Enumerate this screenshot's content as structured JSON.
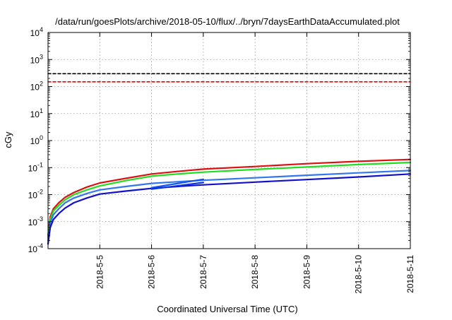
{
  "chart_data": {
    "type": "line",
    "title": "/data/run/goesPlots/archive/2018-05-10/flux/../bryn/7daysEarthDataAccumulated.plot",
    "xlabel": "Coordinated Universal Time (UTC)",
    "ylabel": "cGy",
    "y_scale": "log",
    "ylim": [
      0.0001,
      10000
    ],
    "xlim": [
      "2018-05-04 00:00",
      "2018-05-11 00:00"
    ],
    "x_ticks": [
      "2018-5-5",
      "2018-5-6",
      "2018-5-7",
      "2018-5-8",
      "2018-5-9",
      "2018-5-10",
      "2018-5-11"
    ],
    "y_ticks": [
      {
        "value": 0.0001,
        "base": "10",
        "exp": "-4"
      },
      {
        "value": 0.001,
        "base": "10",
        "exp": "-3"
      },
      {
        "value": 0.01,
        "base": "10",
        "exp": "-2"
      },
      {
        "value": 0.1,
        "base": "10",
        "exp": "-1"
      },
      {
        "value": 1,
        "base": "10",
        "exp": "0"
      },
      {
        "value": 10,
        "base": "10",
        "exp": "1"
      },
      {
        "value": 100,
        "base": "10",
        "exp": "2"
      },
      {
        "value": 1000,
        "base": "10",
        "exp": "3"
      },
      {
        "value": 10000,
        "base": "10",
        "exp": "4"
      }
    ],
    "grid": true,
    "series": [
      {
        "color": "#000000",
        "dashed": true,
        "points": [
          [
            "2018-05-04 00:00",
            300
          ],
          [
            "2018-05-11 00:00",
            300
          ]
        ]
      },
      {
        "color": "#ee0000",
        "dashed": true,
        "points": [
          [
            "2018-05-04 00:00",
            150
          ],
          [
            "2018-05-11 00:00",
            150
          ]
        ]
      },
      {
        "color": "#dd1111",
        "dashed": false,
        "points": [
          [
            "2018-05-04 00:00",
            0.0003
          ],
          [
            "2018-05-04 01:00",
            0.0015
          ],
          [
            "2018-05-04 02:30",
            0.003
          ],
          [
            "2018-05-04 05:00",
            0.005
          ],
          [
            "2018-05-04 08:00",
            0.008
          ],
          [
            "2018-05-04 12:00",
            0.012
          ],
          [
            "2018-05-04 18:00",
            0.019
          ],
          [
            "2018-05-05 00:00",
            0.027
          ],
          [
            "2018-05-05 12:00",
            0.04
          ],
          [
            "2018-05-06 00:00",
            0.058
          ],
          [
            "2018-05-06 12:00",
            0.072
          ],
          [
            "2018-05-07 00:00",
            0.088
          ],
          [
            "2018-05-08 00:00",
            0.11
          ],
          [
            "2018-05-09 00:00",
            0.14
          ],
          [
            "2018-05-10 00:00",
            0.17
          ],
          [
            "2018-05-11 00:00",
            0.2
          ]
        ]
      },
      {
        "color": "#22dd22",
        "dashed": false,
        "points": [
          [
            "2018-05-04 00:00",
            0.00025
          ],
          [
            "2018-05-04 01:00",
            0.0012
          ],
          [
            "2018-05-04 02:30",
            0.0025
          ],
          [
            "2018-05-04 05:00",
            0.004
          ],
          [
            "2018-05-04 08:00",
            0.0065
          ],
          [
            "2018-05-04 12:00",
            0.01
          ],
          [
            "2018-05-04 18:00",
            0.015
          ],
          [
            "2018-05-05 00:00",
            0.021
          ],
          [
            "2018-05-05 12:00",
            0.033
          ],
          [
            "2018-05-06 00:00",
            0.048
          ],
          [
            "2018-05-06 12:00",
            0.058
          ],
          [
            "2018-05-07 00:00",
            0.068
          ],
          [
            "2018-05-08 00:00",
            0.085
          ],
          [
            "2018-05-09 00:00",
            0.105
          ],
          [
            "2018-05-10 00:00",
            0.13
          ],
          [
            "2018-05-11 00:00",
            0.155
          ]
        ]
      },
      {
        "color": "#3377ee",
        "dashed": false,
        "points": [
          [
            "2018-05-04 00:00",
            0.0002
          ],
          [
            "2018-05-04 01:00",
            0.0009
          ],
          [
            "2018-05-04 02:30",
            0.0018
          ],
          [
            "2018-05-04 05:00",
            0.003
          ],
          [
            "2018-05-04 08:00",
            0.005
          ],
          [
            "2018-05-04 12:00",
            0.0075
          ],
          [
            "2018-05-04 18:00",
            0.011
          ],
          [
            "2018-05-05 00:00",
            0.015
          ],
          [
            "2018-05-05 12:00",
            0.02
          ],
          [
            "2018-05-06 00:00",
            0.026
          ],
          [
            "2018-05-06 12:00",
            0.03
          ],
          [
            "2018-05-07 00:00",
            0.034
          ],
          [
            "2018-05-08 00:00",
            0.042
          ],
          [
            "2018-05-09 00:00",
            0.052
          ],
          [
            "2018-05-10 00:00",
            0.064
          ],
          [
            "2018-05-11 00:00",
            0.078
          ]
        ]
      },
      {
        "color": "#1111cc",
        "dashed": false,
        "points": [
          [
            "2018-05-04 00:00",
            0.00015
          ],
          [
            "2018-05-04 01:00",
            0.0006
          ],
          [
            "2018-05-04 02:30",
            0.0012
          ],
          [
            "2018-05-04 05:00",
            0.002
          ],
          [
            "2018-05-04 08:00",
            0.0032
          ],
          [
            "2018-05-04 12:00",
            0.005
          ],
          [
            "2018-05-04 18:00",
            0.0075
          ],
          [
            "2018-05-05 00:00",
            0.0105
          ],
          [
            "2018-05-05 12:00",
            0.0135
          ],
          [
            "2018-05-06 00:00",
            0.017
          ],
          [
            "2018-05-06 12:00",
            0.02
          ],
          [
            "2018-05-07 00:00",
            0.023
          ],
          [
            "2018-05-08 00:00",
            0.029
          ],
          [
            "2018-05-09 00:00",
            0.036
          ],
          [
            "2018-05-10 00:00",
            0.045
          ],
          [
            "2018-05-11 00:00",
            0.058
          ]
        ]
      },
      {
        "color": "#1155ee",
        "dashed": false,
        "points": [
          [
            "2018-05-06 00:00",
            0.018
          ],
          [
            "2018-05-07 00:00",
            0.037
          ]
        ]
      },
      {
        "color": "#1133dd",
        "dashed": false,
        "points": [
          [
            "2018-05-06 00:00",
            0.016
          ],
          [
            "2018-05-07 00:00",
            0.028
          ]
        ]
      }
    ]
  }
}
